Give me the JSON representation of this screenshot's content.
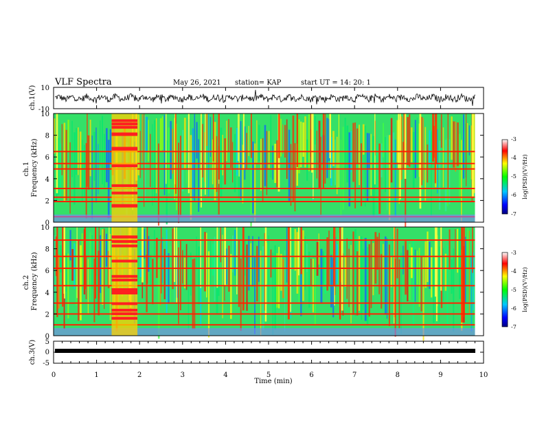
{
  "header": {
    "title": "VLF Spectra",
    "date": "May 26, 2021",
    "station": "station= KAP",
    "start": "start  UT =   14: 20: 1"
  },
  "panels": {
    "ch1_waveform_label": "ch.1(V)",
    "ch1_spectrogram_label": "ch.1\nFrequency (kHz)",
    "ch2_spectrogram_label": "ch.2\nFrequency (kHz)",
    "ch3_label": "ch.3(V)",
    "x_label": "Time  (min)"
  },
  "colorbar": {
    "label": "log(PSD)(V²/Hz)",
    "ticks": [
      "-3",
      "-4",
      "-5",
      "-6",
      "-7"
    ]
  },
  "colors": {
    "low": "#000080",
    "mid": "#00ff00",
    "high": "#ff0000",
    "top": "#ffffff"
  },
  "chart_data": [
    {
      "type": "line",
      "name": "ch1-waveform",
      "ylabel": "ch.1(V)",
      "ylim": [
        -10,
        10
      ],
      "yticks": [
        10,
        -10
      ],
      "xlim": [
        0,
        10
      ],
      "description_values": "noise, approx. -4 to 4 V"
    },
    {
      "type": "heatmap",
      "name": "ch1-spectrogram",
      "ylabel": "Frequency (kHz)",
      "ylim": [
        0,
        10
      ],
      "yticks": [
        0,
        2,
        4,
        6,
        8,
        10
      ],
      "xlim": [
        0,
        10
      ],
      "zlim": [
        -7,
        -3
      ],
      "features": {
        "burst_min": [
          1.35,
          1.95
        ],
        "lines_khz": [
          0.5,
          1.9,
          2.3,
          3.1,
          4.9,
          5.4,
          6.5
        ]
      }
    },
    {
      "type": "heatmap",
      "name": "ch2-spectrogram",
      "ylabel": "Frequency (kHz)",
      "ylim": [
        0,
        10
      ],
      "yticks": [
        0,
        2,
        4,
        6,
        8,
        10
      ],
      "xlim": [
        0,
        10
      ],
      "zlim": [
        -7,
        -3
      ],
      "features": {
        "burst_min": [
          1.35,
          1.95
        ],
        "lines_khz": [
          1.0,
          2.0,
          3.0,
          4.6,
          6.2,
          7.3,
          8.8
        ]
      }
    },
    {
      "type": "line",
      "name": "ch3-waveform",
      "ylabel": "ch.3(V)",
      "ylim": [
        -5,
        5
      ],
      "yticks": [
        5,
        0,
        -5
      ],
      "xlim": [
        0,
        10
      ],
      "value": -0.5
    }
  ],
  "xaxis": {
    "xlim": [
      0,
      10
    ],
    "ticks": [
      "0",
      "1",
      "2",
      "3",
      "4",
      "5",
      "6",
      "7",
      "8",
      "9",
      "10"
    ]
  }
}
